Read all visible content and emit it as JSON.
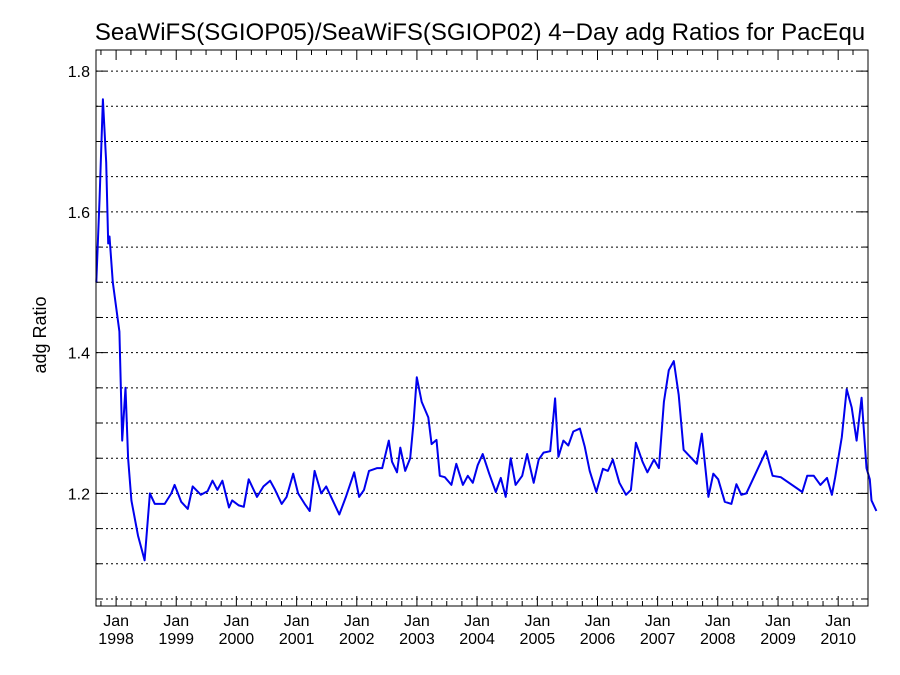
{
  "chart_data": {
    "type": "line",
    "title": "SeaWiFS(SGIOP05)/SeaWiFS(SGIOP02) 4−Day adg Ratios for PacEqu",
    "xlabel": "",
    "ylabel": "adg Ratio",
    "xlim": [
      "1997-09-01",
      "2010-07-01"
    ],
    "ylim": [
      1.04,
      1.83
    ],
    "y_ticks": [
      1.2,
      1.4,
      1.6,
      1.8
    ],
    "y_tick_labels": [
      "1.2",
      "1.4",
      "1.6",
      "1.8"
    ],
    "y_minor_step": 0.05,
    "x_ticks": [
      {
        "date": "1998-01-01",
        "month": "Jan",
        "year": "1998"
      },
      {
        "date": "1999-01-01",
        "month": "Jan",
        "year": "1999"
      },
      {
        "date": "2000-01-01",
        "month": "Jan",
        "year": "2000"
      },
      {
        "date": "2001-01-01",
        "month": "Jan",
        "year": "2001"
      },
      {
        "date": "2002-01-01",
        "month": "Jan",
        "year": "2002"
      },
      {
        "date": "2003-01-01",
        "month": "Jan",
        "year": "2003"
      },
      {
        "date": "2004-01-01",
        "month": "Jan",
        "year": "2004"
      },
      {
        "date": "2005-01-01",
        "month": "Jan",
        "year": "2005"
      },
      {
        "date": "2006-01-01",
        "month": "Jan",
        "year": "2006"
      },
      {
        "date": "2007-01-01",
        "month": "Jan",
        "year": "2007"
      },
      {
        "date": "2008-01-01",
        "month": "Jan",
        "year": "2008"
      },
      {
        "date": "2009-01-01",
        "month": "Jan",
        "year": "2009"
      },
      {
        "date": "2010-01-01",
        "month": "Jan",
        "year": "2010"
      }
    ],
    "grid": "horizontal dotted",
    "series": [
      {
        "color": "#0000ee",
        "points": [
          [
            "1997-09-03",
            1.5
          ],
          [
            "1997-09-23",
            1.62
          ],
          [
            "1997-10-13",
            1.76
          ],
          [
            "1997-11-02",
            1.67
          ],
          [
            "1997-11-14",
            1.555
          ],
          [
            "1997-11-22",
            1.565
          ],
          [
            "1997-12-12",
            1.5
          ],
          [
            "1998-01-21",
            1.43
          ],
          [
            "1998-02-07",
            1.275
          ],
          [
            "1998-02-27",
            1.35
          ],
          [
            "1998-03-15",
            1.25
          ],
          [
            "1998-04-04",
            1.19
          ],
          [
            "1998-05-14",
            1.14
          ],
          [
            "1998-06-23",
            1.105
          ],
          [
            "1998-07-25",
            1.2
          ],
          [
            "1998-08-24",
            1.185
          ],
          [
            "1998-10-23",
            1.185
          ],
          [
            "1998-12-02",
            1.2
          ],
          [
            "1998-12-22",
            1.212
          ],
          [
            "1999-01-31",
            1.188
          ],
          [
            "1999-03-12",
            1.178
          ],
          [
            "1999-04-11",
            1.21
          ],
          [
            "1999-05-31",
            1.198
          ],
          [
            "1999-07-10",
            1.203
          ],
          [
            "1999-08-09",
            1.218
          ],
          [
            "1999-09-08",
            1.205
          ],
          [
            "1999-10-08",
            1.218
          ],
          [
            "1999-11-17",
            1.18
          ],
          [
            "1999-12-07",
            1.19
          ],
          [
            "2000-01-16",
            1.183
          ],
          [
            "2000-02-15",
            1.181
          ],
          [
            "2000-03-16",
            1.22
          ],
          [
            "2000-05-05",
            1.195
          ],
          [
            "2000-06-14",
            1.21
          ],
          [
            "2000-07-24",
            1.218
          ],
          [
            "2000-08-23",
            1.205
          ],
          [
            "2000-10-02",
            1.185
          ],
          [
            "2000-11-01",
            1.195
          ],
          [
            "2000-12-11",
            1.228
          ],
          [
            "2001-01-10",
            1.2
          ],
          [
            "2001-02-19",
            1.185
          ],
          [
            "2001-03-21",
            1.175
          ],
          [
            "2001-04-20",
            1.232
          ],
          [
            "2001-05-30",
            1.2
          ],
          [
            "2001-06-29",
            1.21
          ],
          [
            "2001-07-29",
            1.195
          ],
          [
            "2001-09-17",
            1.17
          ],
          [
            "2001-10-27",
            1.195
          ],
          [
            "2001-12-16",
            1.23
          ],
          [
            "2002-01-15",
            1.195
          ],
          [
            "2002-02-14",
            1.205
          ],
          [
            "2002-03-16",
            1.232
          ],
          [
            "2002-05-05",
            1.236
          ],
          [
            "2002-06-04",
            1.236
          ],
          [
            "2002-07-14",
            1.275
          ],
          [
            "2002-08-03",
            1.245
          ],
          [
            "2002-09-02",
            1.23
          ],
          [
            "2002-09-22",
            1.265
          ],
          [
            "2002-10-22",
            1.232
          ],
          [
            "2002-11-21",
            1.25
          ],
          [
            "2002-12-11",
            1.3
          ],
          [
            "2002-12-31",
            1.365
          ],
          [
            "2003-01-30",
            1.33
          ],
          [
            "2003-03-11",
            1.308
          ],
          [
            "2003-03-31",
            1.27
          ],
          [
            "2003-04-30",
            1.276
          ],
          [
            "2003-05-20",
            1.225
          ],
          [
            "2003-06-19",
            1.223
          ],
          [
            "2003-07-29",
            1.212
          ],
          [
            "2003-08-28",
            1.242
          ],
          [
            "2003-10-07",
            1.212
          ],
          [
            "2003-11-06",
            1.225
          ],
          [
            "2003-12-06",
            1.215
          ],
          [
            "2004-01-05",
            1.24
          ],
          [
            "2004-02-04",
            1.256
          ],
          [
            "2004-03-15",
            1.228
          ],
          [
            "2004-04-24",
            1.202
          ],
          [
            "2004-05-24",
            1.222
          ],
          [
            "2004-06-23",
            1.195
          ],
          [
            "2004-07-23",
            1.25
          ],
          [
            "2004-08-22",
            1.212
          ],
          [
            "2004-10-01",
            1.225
          ],
          [
            "2004-10-31",
            1.256
          ],
          [
            "2004-12-10",
            1.215
          ],
          [
            "2005-01-09",
            1.248
          ],
          [
            "2005-02-08",
            1.258
          ],
          [
            "2005-03-20",
            1.26
          ],
          [
            "2005-04-19",
            1.335
          ],
          [
            "2005-05-09",
            1.252
          ],
          [
            "2005-06-08",
            1.275
          ],
          [
            "2005-07-08",
            1.268
          ],
          [
            "2005-08-07",
            1.288
          ],
          [
            "2005-09-16",
            1.292
          ],
          [
            "2005-10-16",
            1.266
          ],
          [
            "2005-11-15",
            1.232
          ],
          [
            "2005-12-25",
            1.202
          ],
          [
            "2006-02-03",
            1.235
          ],
          [
            "2006-03-05",
            1.232
          ],
          [
            "2006-04-04",
            1.248
          ],
          [
            "2006-05-14",
            1.215
          ],
          [
            "2006-06-23",
            1.198
          ],
          [
            "2006-07-23",
            1.205
          ],
          [
            "2006-08-22",
            1.272
          ],
          [
            "2006-10-01",
            1.245
          ],
          [
            "2006-10-31",
            1.23
          ],
          [
            "2006-12-10",
            1.248
          ],
          [
            "2007-01-09",
            1.236
          ],
          [
            "2007-02-08",
            1.33
          ],
          [
            "2007-03-10",
            1.375
          ],
          [
            "2007-04-09",
            1.388
          ],
          [
            "2007-05-09",
            1.34
          ],
          [
            "2007-06-08",
            1.262
          ],
          [
            "2007-07-18",
            1.252
          ],
          [
            "2007-08-27",
            1.242
          ],
          [
            "2007-09-26",
            1.285
          ],
          [
            "2007-11-05",
            1.195
          ],
          [
            "2007-12-05",
            1.228
          ],
          [
            "2008-01-04",
            1.22
          ],
          [
            "2008-02-13",
            1.188
          ],
          [
            "2008-03-24",
            1.185
          ],
          [
            "2008-04-23",
            1.213
          ],
          [
            "2008-05-23",
            1.198
          ],
          [
            "2008-06-22",
            1.2
          ],
          [
            "2008-10-20",
            1.26
          ],
          [
            "2008-11-29",
            1.225
          ],
          [
            "2009-01-18",
            1.223
          ],
          [
            "2009-05-28",
            1.202
          ],
          [
            "2009-06-27",
            1.225
          ],
          [
            "2009-08-06",
            1.225
          ],
          [
            "2009-09-15",
            1.212
          ],
          [
            "2009-10-25",
            1.222
          ],
          [
            "2009-11-24",
            1.198
          ],
          [
            "2009-12-14",
            1.223
          ],
          [
            "2010-07-12",
            1.22
          ],
          [
            "2010-01-23",
            1.28
          ],
          [
            "2010-02-22",
            1.348
          ],
          [
            "2010-03-24",
            1.322
          ],
          [
            "2010-04-23",
            1.275
          ],
          [
            "2010-05-23",
            1.336
          ],
          [
            "2010-06-22",
            1.236
          ],
          [
            "2010-07-22",
            1.19
          ],
          [
            "2010-08-21",
            1.175
          ]
        ]
      }
    ]
  }
}
